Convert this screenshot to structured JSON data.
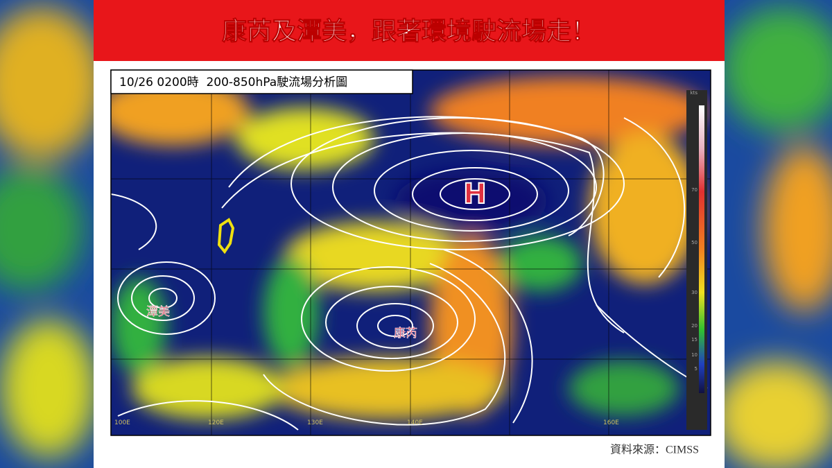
{
  "header": {
    "title": "康芮及潭美，跟著環境駛流場走！"
  },
  "map": {
    "caption": "10/26 0200時  200-850hPa駛流場分析圖",
    "labels": {
      "high": "H",
      "storm_west": "潭美",
      "storm_east": "康芮"
    },
    "longitudes": [
      "100E",
      "120E",
      "130E",
      "140E",
      "160E"
    ],
    "colorbar": {
      "unit": "kts",
      "ticks": [
        "70",
        "50",
        "30",
        "20",
        "15",
        "10",
        "5"
      ]
    }
  },
  "footer": {
    "source": "資料來源：CIMSS"
  }
}
